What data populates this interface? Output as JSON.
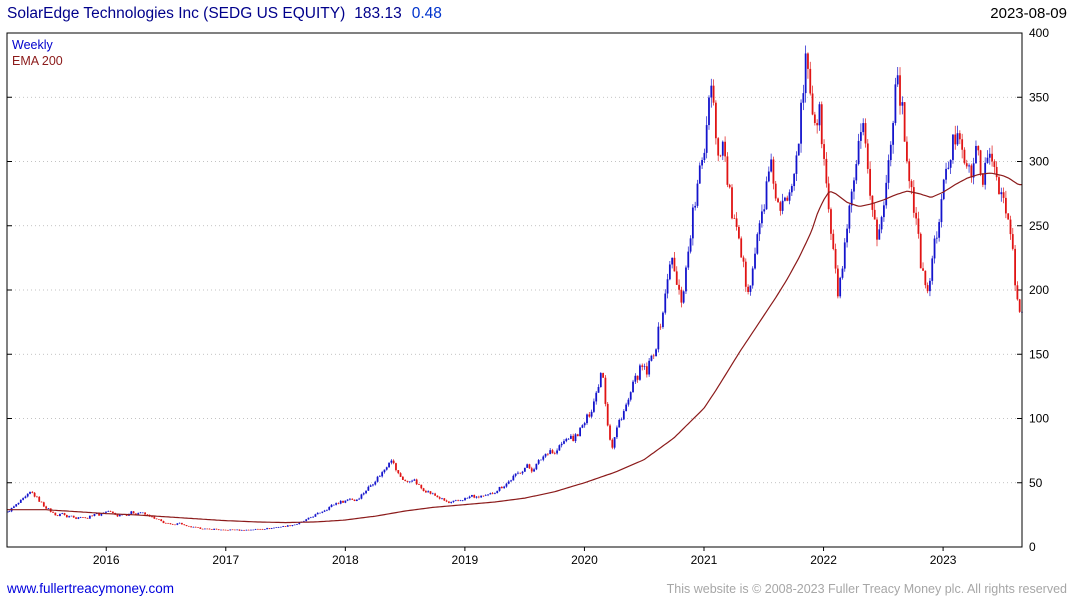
{
  "header": {
    "title": "SolarEdge Technologies Inc (SEDG US EQUITY)",
    "last_price": "183.13",
    "change": "0.48",
    "date": "2023-08-09"
  },
  "legend": {
    "weekly": "Weekly",
    "ema": "EMA 200"
  },
  "footer": {
    "link": "www.fullertreacymoney.com",
    "copyright": "This website is © 2008-2023 Fuller Treacy Money plc. All rights reserved"
  },
  "chart_data": {
    "type": "candlestick",
    "title": "SolarEdge Technologies Inc (SEDG US EQUITY)",
    "timeframe": "Weekly",
    "overlay": "EMA 200",
    "last_price": 183.13,
    "change": 0.48,
    "as_of_date": "2023-08-09",
    "x_ticks": [
      2016,
      2017,
      2018,
      2019,
      2020,
      2021,
      2022,
      2023
    ],
    "y_ticks": [
      0,
      50,
      100,
      150,
      200,
      250,
      300,
      350,
      400
    ],
    "x_range": [
      2015.17,
      2023.66
    ],
    "y_range": [
      0,
      400
    ],
    "grid": "horizontal-dashed",
    "legend_position": "top-left",
    "colors": {
      "up": "#1414cc",
      "down": "#e01414",
      "ema": "#8b1a1a",
      "grid": "#b0b0b0",
      "frame": "#000000"
    },
    "style": {
      "candle_noise": 0.03,
      "wick_noise": 0.022,
      "weeks_per_year": 52
    },
    "close_series": {
      "x": [
        2015.17,
        2015.21,
        2015.25,
        2015.29,
        2015.33,
        2015.37,
        2015.4,
        2015.44,
        2015.48,
        2015.52,
        2015.56,
        2015.6,
        2015.63,
        2015.67,
        2015.71,
        2015.75,
        2015.79,
        2015.83,
        2015.87,
        2015.9,
        2015.94,
        2015.98,
        2016.02,
        2016.06,
        2016.1,
        2016.13,
        2016.17,
        2016.21,
        2016.25,
        2016.29,
        2016.33,
        2016.37,
        2016.4,
        2016.44,
        2016.48,
        2016.52,
        2016.56,
        2016.6,
        2016.63,
        2016.67,
        2016.71,
        2016.75,
        2016.79,
        2016.83,
        2016.87,
        2016.9,
        2016.94,
        2016.98,
        2017.06,
        2017.13,
        2017.21,
        2017.29,
        2017.37,
        2017.44,
        2017.52,
        2017.6,
        2017.65,
        2017.69,
        2017.73,
        2017.77,
        2017.81,
        2017.85,
        2017.88,
        2017.92,
        2017.96,
        2018.0,
        2018.04,
        2018.08,
        2018.12,
        2018.15,
        2018.19,
        2018.23,
        2018.27,
        2018.31,
        2018.35,
        2018.38,
        2018.41,
        2018.44,
        2018.48,
        2018.52,
        2018.56,
        2018.6,
        2018.63,
        2018.67,
        2018.71,
        2018.75,
        2018.79,
        2018.83,
        2018.87,
        2018.9,
        2018.94,
        2018.98,
        2019.02,
        2019.06,
        2019.1,
        2019.13,
        2019.17,
        2019.21,
        2019.25,
        2019.29,
        2019.33,
        2019.37,
        2019.4,
        2019.44,
        2019.48,
        2019.52,
        2019.56,
        2019.6,
        2019.63,
        2019.67,
        2019.71,
        2019.75,
        2019.79,
        2019.83,
        2019.87,
        2019.9,
        2019.94,
        2019.98,
        2020.02,
        2020.06,
        2020.1,
        2020.13,
        2020.15,
        2020.17,
        2020.2,
        2020.23,
        2020.26,
        2020.29,
        2020.33,
        2020.37,
        2020.4,
        2020.44,
        2020.48,
        2020.52,
        2020.56,
        2020.6,
        2020.63,
        2020.67,
        2020.7,
        2020.72,
        2020.75,
        2020.78,
        2020.81,
        2020.84,
        2020.87,
        2020.9,
        2020.93,
        2020.96,
        2021.0,
        2021.03,
        2021.06,
        2021.09,
        2021.12,
        2021.15,
        2021.18,
        2021.21,
        2021.24,
        2021.27,
        2021.3,
        2021.33,
        2021.36,
        2021.39,
        2021.42,
        2021.45,
        2021.48,
        2021.51,
        2021.54,
        2021.57,
        2021.6,
        2021.63,
        2021.66,
        2021.69,
        2021.72,
        2021.75,
        2021.78,
        2021.81,
        2021.84,
        2021.86,
        2021.88,
        2021.91,
        2021.94,
        2021.97,
        2022.0,
        2022.03,
        2022.06,
        2022.09,
        2022.12,
        2022.15,
        2022.18,
        2022.21,
        2022.24,
        2022.27,
        2022.3,
        2022.33,
        2022.36,
        2022.39,
        2022.42,
        2022.45,
        2022.48,
        2022.51,
        2022.54,
        2022.57,
        2022.6,
        2022.62,
        2022.65,
        2022.68,
        2022.71,
        2022.74,
        2022.77,
        2022.8,
        2022.83,
        2022.86,
        2022.89,
        2022.92,
        2022.95,
        2022.98,
        2023.01,
        2023.04,
        2023.07,
        2023.1,
        2023.13,
        2023.16,
        2023.19,
        2023.22,
        2023.25,
        2023.28,
        2023.31,
        2023.34,
        2023.37,
        2023.4,
        2023.43,
        2023.46,
        2023.49,
        2023.52,
        2023.55,
        2023.58,
        2023.61,
        2023.63
      ],
      "y": [
        27,
        30,
        33,
        36,
        39,
        43,
        40,
        36,
        32,
        29,
        26,
        24,
        27,
        23,
        25,
        22,
        24,
        22,
        24,
        26,
        25,
        27,
        28,
        26,
        24,
        26,
        25,
        27,
        26,
        27,
        25,
        24,
        22,
        21,
        19,
        18,
        17,
        19,
        18,
        16,
        15.5,
        15,
        14.5,
        14,
        13.5,
        14,
        13.5,
        13,
        13.5,
        13,
        13.5,
        14,
        14.5,
        15.5,
        16.5,
        18,
        20,
        22,
        24,
        26,
        28,
        30,
        32,
        34,
        35,
        36,
        38,
        36,
        39,
        42,
        46,
        50,
        54,
        58,
        64,
        70,
        63,
        57,
        53,
        50,
        53,
        49,
        46,
        44,
        42,
        40,
        38,
        36,
        34,
        35,
        36,
        37,
        38,
        40,
        38,
        40,
        39,
        41,
        43,
        46,
        48,
        51,
        54,
        57,
        60,
        63,
        60,
        64,
        68,
        72,
        76,
        72,
        78,
        82,
        86,
        83,
        88,
        93,
        100,
        108,
        120,
        133,
        142,
        118,
        92,
        76,
        88,
        98,
        106,
        114,
        124,
        133,
        140,
        135,
        147,
        158,
        172,
        190,
        212,
        228,
        214,
        200,
        193,
        208,
        232,
        255,
        270,
        288,
        308,
        342,
        368,
        335,
        302,
        320,
        298,
        275,
        258,
        244,
        230,
        216,
        202,
        210,
        225,
        242,
        258,
        272,
        288,
        295,
        274,
        258,
        264,
        272,
        282,
        296,
        312,
        335,
        362,
        388,
        362,
        340,
        330,
        336,
        304,
        274,
        246,
        220,
        198,
        212,
        232,
        254,
        274,
        294,
        312,
        322,
        300,
        278,
        258,
        240,
        250,
        272,
        296,
        328,
        356,
        372,
        344,
        318,
        296,
        276,
        254,
        232,
        212,
        196,
        210,
        228,
        248,
        266,
        282,
        296,
        308,
        320,
        330,
        314,
        298,
        288,
        296,
        308,
        298,
        288,
        296,
        306,
        296,
        286,
        274,
        262,
        250,
        234,
        196,
        183
      ]
    },
    "ema_series": {
      "x": [
        2015.17,
        2015.5,
        2015.75,
        2016.0,
        2016.25,
        2016.5,
        2016.75,
        2017.0,
        2017.25,
        2017.5,
        2017.75,
        2018.0,
        2018.25,
        2018.5,
        2018.75,
        2019.0,
        2019.25,
        2019.5,
        2019.75,
        2020.0,
        2020.25,
        2020.5,
        2020.75,
        2021.0,
        2021.1,
        2021.2,
        2021.3,
        2021.4,
        2021.5,
        2021.6,
        2021.7,
        2021.8,
        2021.9,
        2021.95,
        2022.0,
        2022.05,
        2022.1,
        2022.2,
        2022.3,
        2022.4,
        2022.5,
        2022.6,
        2022.7,
        2022.8,
        2022.9,
        2023.0,
        2023.1,
        2023.2,
        2023.3,
        2023.4,
        2023.5,
        2023.55,
        2023.63
      ],
      "y": [
        29,
        29,
        27.5,
        26,
        25,
        23.5,
        22,
        20.5,
        19.5,
        19,
        19.5,
        21,
        24,
        28,
        31,
        33,
        35,
        38,
        43,
        50,
        58,
        68,
        85,
        108,
        122,
        137,
        152,
        166,
        180,
        194,
        209,
        226,
        246,
        260,
        270,
        277,
        275,
        268,
        265,
        267,
        270,
        274,
        277,
        275,
        272,
        276,
        282,
        287,
        290,
        291,
        289,
        287,
        282
      ]
    }
  }
}
